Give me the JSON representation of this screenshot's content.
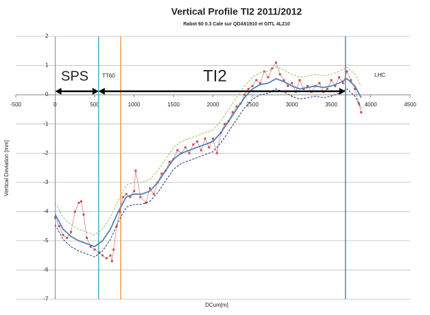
{
  "chart_data": {
    "type": "line",
    "title": "Vertical Profile TI2 2011/2012",
    "subtitle": "Rabot 60 0.3 Cale sur QDA61910 et GITL 4L210",
    "x_label": "DCum[m]",
    "y_label": "Vertical Deviation [mm]",
    "xlim": [
      -500,
      4500
    ],
    "xticks": [
      -500,
      0,
      500,
      1000,
      1500,
      2000,
      2500,
      3000,
      3500,
      4000,
      4500
    ],
    "ylim": [
      -7,
      2
    ],
    "yticks": [
      2,
      1,
      0,
      -1,
      -2,
      -3,
      -4,
      -5,
      -6,
      -7
    ],
    "grid": true,
    "series": [
      {
        "style": "points",
        "color": "#c0504d",
        "x": [
          0,
          50,
          100,
          150,
          200,
          250,
          300,
          330,
          360,
          400,
          450,
          500,
          560,
          600,
          650,
          700,
          720,
          740,
          780,
          820,
          860,
          900,
          950,
          1000,
          1020,
          1080,
          1150,
          1200,
          1250,
          1300,
          1350,
          1400,
          1450,
          1500,
          1550,
          1600,
          1650,
          1700,
          1750,
          1800,
          1850,
          1900,
          1950,
          2000,
          2050,
          2100,
          2150,
          2200,
          2250,
          2300,
          2350,
          2400,
          2450,
          2500,
          2550,
          2600,
          2650,
          2700,
          2750,
          2800,
          2850,
          2900,
          2950,
          3000,
          3050,
          3100,
          3150,
          3200,
          3250,
          3300,
          3350,
          3400,
          3450,
          3500,
          3550,
          3600,
          3650,
          3700,
          3750,
          3800,
          3850,
          3880
        ],
        "values": [
          -4.2,
          -4.5,
          -4.8,
          -4.9,
          -4.7,
          -4.0,
          -3.7,
          -3.65,
          -4.1,
          -4.9,
          -5.2,
          -5.3,
          -5.4,
          -5.5,
          -5.6,
          -5.5,
          -5.7,
          -5.3,
          -4.5,
          -4.0,
          -3.5,
          -3.4,
          -3.5,
          -3.3,
          -2.6,
          -3.5,
          -3.7,
          -3.2,
          -3.4,
          -3.0,
          -2.7,
          -2.6,
          -2.3,
          -2.2,
          -1.9,
          -2.0,
          -1.8,
          -2.0,
          -1.7,
          -1.6,
          -1.9,
          -1.5,
          -1.8,
          -1.5,
          -2.0,
          -1.3,
          -1.0,
          -0.9,
          -0.6,
          -0.4,
          -0.3,
          0,
          0.2,
          0.3,
          0.5,
          0.4,
          0.8,
          0.6,
          0.9,
          1.1,
          0.7,
          0.5,
          0.3,
          0.4,
          0.1,
          0.5,
          0.2,
          0.3,
          0.1,
          0.3,
          0.4,
          0.1,
          0.2,
          0.5,
          0.3,
          0.6,
          0.4,
          0.8,
          0.5,
          0.2,
          -0.3,
          -0.6
        ]
      },
      {
        "style": "dashed",
        "color": "#9bbb59",
        "x": [
          0,
          100,
          200,
          300,
          400,
          500,
          600,
          700,
          800,
          900,
          1000,
          1100,
          1200,
          1300,
          1400,
          1500,
          1600,
          1700,
          1800,
          1900,
          2000,
          2100,
          2200,
          2300,
          2400,
          2500,
          2600,
          2700,
          2800,
          2900,
          3000,
          3100,
          3200,
          3300,
          3400,
          3500,
          3600,
          3700,
          3800,
          3880
        ],
        "values": [
          -3.7,
          -4.2,
          -4.45,
          -4.6,
          -4.7,
          -4.8,
          -4.6,
          -4.2,
          -3.6,
          -3.1,
          -3.0,
          -3.0,
          -2.9,
          -2.6,
          -2.2,
          -1.8,
          -1.6,
          -1.5,
          -1.4,
          -1.3,
          -1.2,
          -0.9,
          -0.5,
          -0.1,
          0.3,
          0.6,
          0.75,
          0.8,
          0.95,
          0.85,
          0.7,
          0.6,
          0.65,
          0.7,
          0.65,
          0.7,
          0.8,
          0.95,
          0.7,
          0.3
        ]
      },
      {
        "style": "dashed",
        "color": "#1f2a6b",
        "x": [
          0,
          100,
          200,
          300,
          400,
          500,
          600,
          700,
          800,
          900,
          1000,
          1100,
          1200,
          1300,
          1400,
          1500,
          1600,
          1700,
          1800,
          1900,
          2000,
          2100,
          2200,
          2300,
          2400,
          2500,
          2600,
          2700,
          2800,
          2900,
          3000,
          3100,
          3200,
          3300,
          3400,
          3500,
          3600,
          3700,
          3800,
          3880
        ],
        "values": [
          -4.45,
          -4.95,
          -5.2,
          -5.35,
          -5.45,
          -5.55,
          -5.35,
          -4.95,
          -4.35,
          -3.85,
          -3.75,
          -3.75,
          -3.65,
          -3.35,
          -2.95,
          -2.55,
          -2.35,
          -2.25,
          -2.15,
          -2.05,
          -1.95,
          -1.65,
          -1.25,
          -0.85,
          -0.45,
          -0.15,
          0,
          0.05,
          0.2,
          0.1,
          -0.05,
          -0.15,
          -0.1,
          -0.05,
          -0.1,
          -0.05,
          0.05,
          0.2,
          -0.05,
          -0.45
        ]
      },
      {
        "style": "solid",
        "color": "#4f81bd",
        "x": [
          0,
          100,
          200,
          300,
          400,
          500,
          600,
          700,
          800,
          900,
          1000,
          1100,
          1200,
          1300,
          1400,
          1500,
          1600,
          1700,
          1800,
          1900,
          2000,
          2100,
          2200,
          2300,
          2400,
          2500,
          2600,
          2700,
          2800,
          2900,
          3000,
          3100,
          3200,
          3300,
          3400,
          3500,
          3600,
          3700,
          3800,
          3880
        ],
        "values": [
          -4.1,
          -4.6,
          -4.85,
          -5.0,
          -5.1,
          -5.2,
          -5.0,
          -4.6,
          -4.0,
          -3.5,
          -3.4,
          -3.4,
          -3.3,
          -3.0,
          -2.6,
          -2.2,
          -2.0,
          -1.9,
          -1.8,
          -1.7,
          -1.6,
          -1.3,
          -0.9,
          -0.5,
          -0.1,
          0.2,
          0.35,
          0.4,
          0.55,
          0.45,
          0.3,
          0.2,
          0.25,
          0.3,
          0.25,
          0.3,
          0.4,
          0.55,
          0.3,
          -0.1
        ]
      }
    ],
    "vlines": [
      {
        "x": 550,
        "color": "#4bacc6"
      },
      {
        "x": 830,
        "color": "#f79646"
      },
      {
        "x": 3680,
        "color": "#4f81bd"
      }
    ],
    "annotations": [
      "SPS",
      "TT60",
      "TI2",
      "LHC"
    ]
  }
}
